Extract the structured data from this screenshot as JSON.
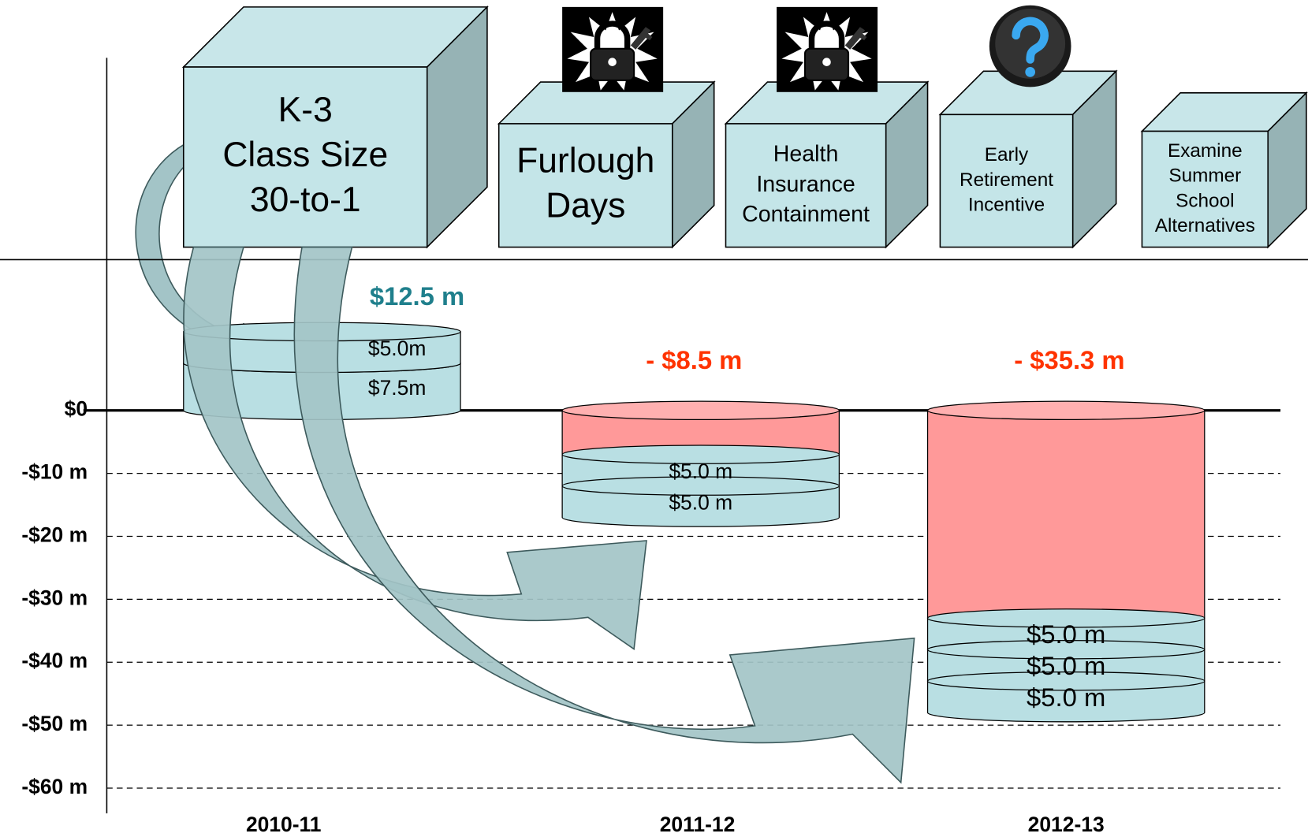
{
  "chart_data": {
    "type": "stacked-cylinder",
    "ylim": [
      -64,
      56
    ],
    "yticks": [
      {
        "value": 0,
        "label": "$0"
      },
      {
        "value": -10,
        "label": "-$10 m"
      },
      {
        "value": -20,
        "label": "-$20 m"
      },
      {
        "value": -30,
        "label": "-$30 m"
      },
      {
        "value": -40,
        "label": "-$40 m"
      },
      {
        "value": -50,
        "label": "-$50 m"
      },
      {
        "value": -60,
        "label": "-$60 m"
      }
    ],
    "grid": true,
    "categories": [
      "2010-11",
      "2011-12",
      "2012-13"
    ],
    "saving_color": "#b9dfe3",
    "deficit_color": "#ff9999",
    "surplus_label_color": "#1f7f8c",
    "deficit_label_color": "#ff3300",
    "stacks": [
      {
        "total": 12.5,
        "total_label": "$12.5 m",
        "deficit": null,
        "segments": [
          {
            "value": 7.5,
            "label": "$7.5m"
          },
          {
            "value": 5.0,
            "label": "$5.0m"
          }
        ]
      },
      {
        "total": -8.5,
        "total_label": "- $8.5 m",
        "deficit": -7,
        "segments": [
          {
            "value": 5.0,
            "label": "$5.0 m"
          },
          {
            "value": 5.0,
            "label": "$5.0 m"
          }
        ]
      },
      {
        "total": -35.3,
        "total_label": "- $35.3 m",
        "deficit": -33,
        "segments": [
          {
            "value": 5.0,
            "label": "$5.0 m"
          },
          {
            "value": 5.0,
            "label": "$5.0 m"
          },
          {
            "value": 5.0,
            "label": "$5.0 m"
          }
        ]
      }
    ],
    "measures": [
      {
        "lines": [
          "K-3",
          "Class Size",
          "30-to-1"
        ]
      },
      {
        "lines": [
          "Furlough",
          "Days"
        ]
      },
      {
        "lines": [
          "Health",
          "Insurance",
          "Containment"
        ]
      },
      {
        "lines": [
          "Early",
          "Retirement",
          "Incentive"
        ]
      },
      {
        "lines": [
          "Examine",
          "Summer",
          "School",
          "Alternatives"
        ]
      }
    ]
  }
}
